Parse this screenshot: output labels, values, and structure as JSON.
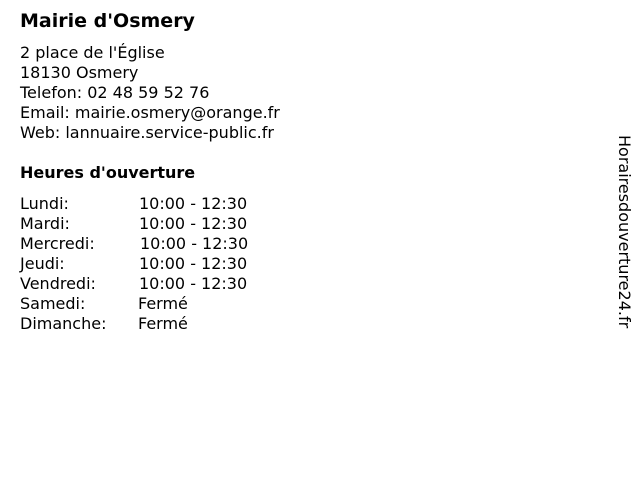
{
  "title": "Mairie d'Osmery",
  "address": {
    "street": "2 place de l'Église",
    "city": "18130 Osmery",
    "phone": "Telefon: 02 48 59 52 76",
    "email": "Email: mairie.osmery@orange.fr",
    "web": "Web: lannuaire.service-public.fr"
  },
  "hours": {
    "heading": "Heures d'ouverture",
    "rows": [
      {
        "day": "Lundi:",
        "time": "10:00 - 12:30"
      },
      {
        "day": "Mardi:",
        "time": "10:00 - 12:30"
      },
      {
        "day": "Mercredi:",
        "time": "10:00 - 12:30"
      },
      {
        "day": "Jeudi:",
        "time": "10:00 - 12:30"
      },
      {
        "day": "Vendredi:",
        "time": "10:00 - 12:30"
      },
      {
        "day": "Samedi:",
        "time": "Fermé"
      },
      {
        "day": "Dimanche:",
        "time": "Fermé"
      }
    ]
  },
  "watermark": "Horairesdouverture24.fr"
}
